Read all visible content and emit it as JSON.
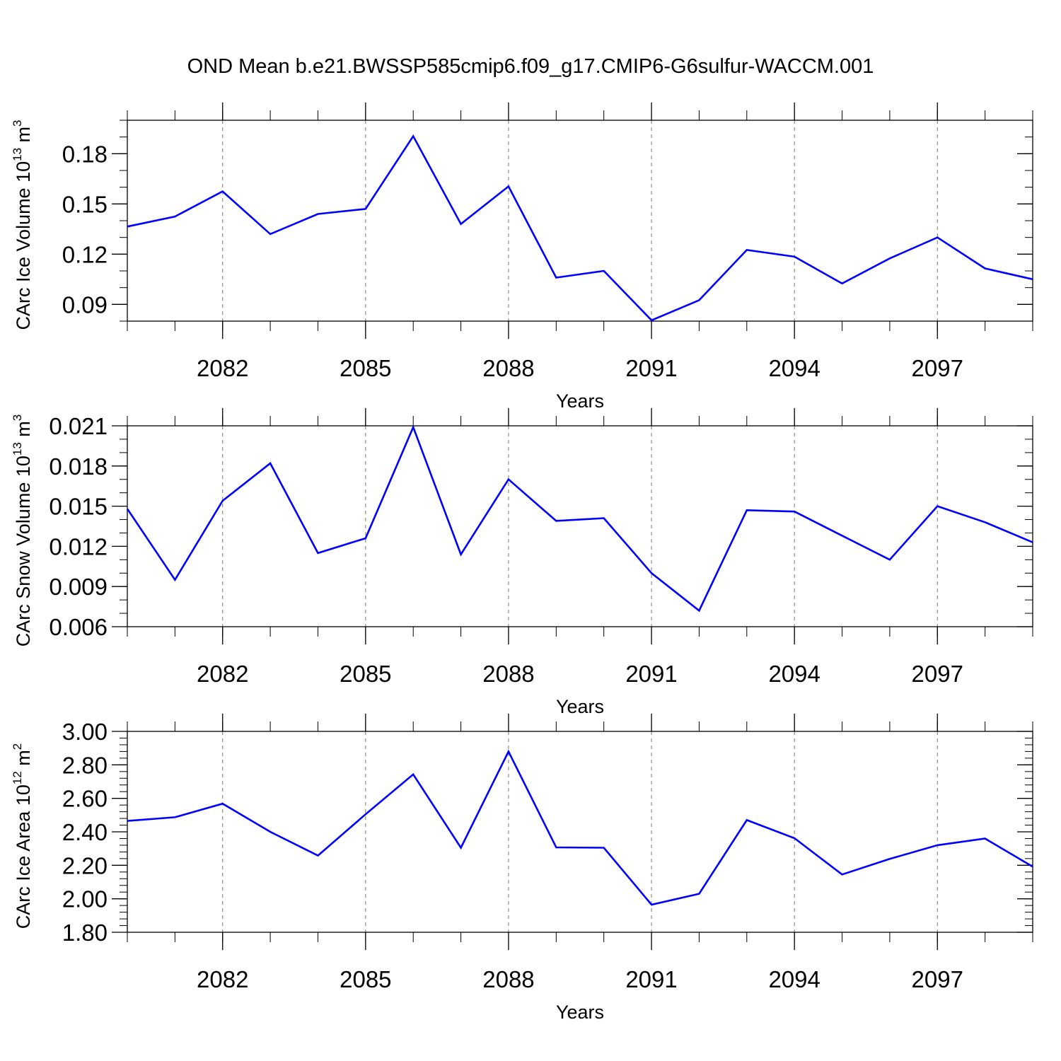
{
  "title": "OND Mean b.e21.BWSSP585cmip6.f09_g17.CMIP6-G6sulfur-WACCM.001",
  "colors": {
    "line": "#0000ff",
    "axis": "#000000",
    "grid": "#777777"
  },
  "chart_data": [
    {
      "type": "line",
      "title": "",
      "xlabel": "Years",
      "ylabel": {
        "base": "CArc Ice Volume 10",
        "exp": "13",
        "unit": " m",
        "unit_exp": "3"
      },
      "x": [
        2080,
        2081,
        2082,
        2083,
        2084,
        2085,
        2086,
        2087,
        2088,
        2089,
        2090,
        2091,
        2092,
        2093,
        2094,
        2095,
        2096,
        2097,
        2098,
        2099
      ],
      "xlim": [
        2080,
        2099
      ],
      "xticks": [
        2082,
        2085,
        2088,
        2091,
        2094,
        2097
      ],
      "xtick_labels": [
        "2082",
        "2085",
        "2088",
        "2091",
        "2094",
        "2097"
      ],
      "ylim": [
        0.08,
        0.2
      ],
      "yticks": [
        0.09,
        0.12,
        0.15,
        0.18
      ],
      "ytick_labels": [
        "0.09",
        "0.12",
        "0.15",
        "0.18"
      ],
      "yminor_step": 0.01,
      "series": [
        {
          "values": [
            0.1365,
            0.1425,
            0.1575,
            0.132,
            0.144,
            0.147,
            0.1905,
            0.138,
            0.1605,
            0.106,
            0.11,
            0.0805,
            0.0925,
            0.1225,
            0.1185,
            0.1025,
            0.1175,
            0.13,
            0.1115,
            0.105
          ]
        }
      ],
      "grid": "vertical-dashed-at-major-x"
    },
    {
      "type": "line",
      "title": "",
      "xlabel": "Years",
      "ylabel": {
        "base": "CArc Snow Volume 10",
        "exp": "13",
        "unit": " m",
        "unit_exp": "3"
      },
      "x": [
        2080,
        2081,
        2082,
        2083,
        2084,
        2085,
        2086,
        2087,
        2088,
        2089,
        2090,
        2091,
        2092,
        2093,
        2094,
        2095,
        2096,
        2097,
        2098,
        2099
      ],
      "xlim": [
        2080,
        2099
      ],
      "xticks": [
        2082,
        2085,
        2088,
        2091,
        2094,
        2097
      ],
      "xtick_labels": [
        "2082",
        "2085",
        "2088",
        "2091",
        "2094",
        "2097"
      ],
      "ylim": [
        0.006,
        0.021
      ],
      "yticks": [
        0.006,
        0.009,
        0.012,
        0.015,
        0.018,
        0.021
      ],
      "ytick_labels": [
        "0.006",
        "0.009",
        "0.012",
        "0.015",
        "0.018",
        "0.021"
      ],
      "yminor_step": 0.001,
      "series": [
        {
          "values": [
            0.0148,
            0.0095,
            0.0154,
            0.0182,
            0.0115,
            0.0126,
            0.0209,
            0.0114,
            0.017,
            0.0139,
            0.0141,
            0.01,
            0.0072,
            0.0147,
            0.0146,
            0.0128,
            0.011,
            0.015,
            0.0138,
            0.0123
          ]
        }
      ],
      "grid": "vertical-dashed-at-major-x"
    },
    {
      "type": "line",
      "title": "",
      "xlabel": "Years",
      "ylabel": {
        "base": "CArc Ice Area 10",
        "exp": "12",
        "unit": " m",
        "unit_exp": "2"
      },
      "x": [
        2080,
        2081,
        2082,
        2083,
        2084,
        2085,
        2086,
        2087,
        2088,
        2089,
        2090,
        2091,
        2092,
        2093,
        2094,
        2095,
        2096,
        2097,
        2098,
        2099
      ],
      "xlim": [
        2080,
        2099
      ],
      "xticks": [
        2082,
        2085,
        2088,
        2091,
        2094,
        2097
      ],
      "xtick_labels": [
        "2082",
        "2085",
        "2088",
        "2091",
        "2094",
        "2097"
      ],
      "ylim": [
        1.8,
        3.0
      ],
      "yticks": [
        1.8,
        2.0,
        2.2,
        2.4,
        2.6,
        2.8,
        3.0
      ],
      "ytick_labels": [
        "1.80",
        "2.00",
        "2.20",
        "2.40",
        "2.60",
        "2.80",
        "3.00"
      ],
      "yminor_step": 0.04,
      "series": [
        {
          "values": [
            2.465,
            2.487,
            2.568,
            2.4,
            2.258,
            2.505,
            2.743,
            2.305,
            2.88,
            2.307,
            2.305,
            1.965,
            2.03,
            2.47,
            2.362,
            2.145,
            2.238,
            2.32,
            2.36,
            2.192
          ]
        }
      ],
      "grid": "vertical-dashed-at-major-x"
    }
  ]
}
